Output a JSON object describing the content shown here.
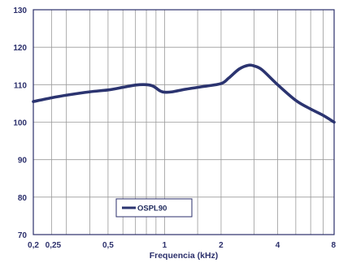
{
  "chart_data": {
    "type": "line",
    "title": "",
    "xlabel": "Frequencia (kHz)",
    "ylabel": "",
    "x_scale": "log",
    "xlim": [
      0.2,
      8
    ],
    "ylim": [
      70,
      130
    ],
    "x_ticks": [
      {
        "value": 0.2,
        "label": "0,2"
      },
      {
        "value": 0.25,
        "label": "0,25"
      },
      {
        "value": 0.5,
        "label": "0,5"
      },
      {
        "value": 1,
        "label": "1"
      },
      {
        "value": 2,
        "label": "2"
      },
      {
        "value": 4,
        "label": "4"
      },
      {
        "value": 8,
        "label": "8"
      }
    ],
    "x_gridlines": [
      0.2,
      0.25,
      0.3,
      0.4,
      0.5,
      0.6,
      0.7,
      0.8,
      0.9,
      1,
      1.5,
      2,
      3,
      4,
      5,
      6,
      7,
      8
    ],
    "y_ticks": [
      70,
      80,
      90,
      100,
      110,
      120,
      130
    ],
    "grid": true,
    "legend": {
      "position": "bottom-left"
    },
    "series": [
      {
        "name": "OSPL90",
        "color": "#2b3470",
        "x": [
          0.2,
          0.25,
          0.3,
          0.4,
          0.5,
          0.6,
          0.7,
          0.8,
          0.87,
          0.95,
          1.0,
          1.1,
          1.3,
          1.6,
          2.0,
          2.2,
          2.5,
          2.8,
          3.0,
          3.3,
          4.0,
          5.0,
          6.0,
          7.0,
          8.0
        ],
        "y": [
          105.5,
          106.5,
          107.2,
          108.1,
          108.6,
          109.3,
          109.9,
          110.0,
          109.6,
          108.3,
          108.0,
          108.1,
          108.8,
          109.5,
          110.3,
          111.8,
          114.2,
          115.2,
          115.0,
          114.0,
          110.0,
          105.8,
          103.5,
          101.8,
          100.0
        ]
      }
    ]
  }
}
